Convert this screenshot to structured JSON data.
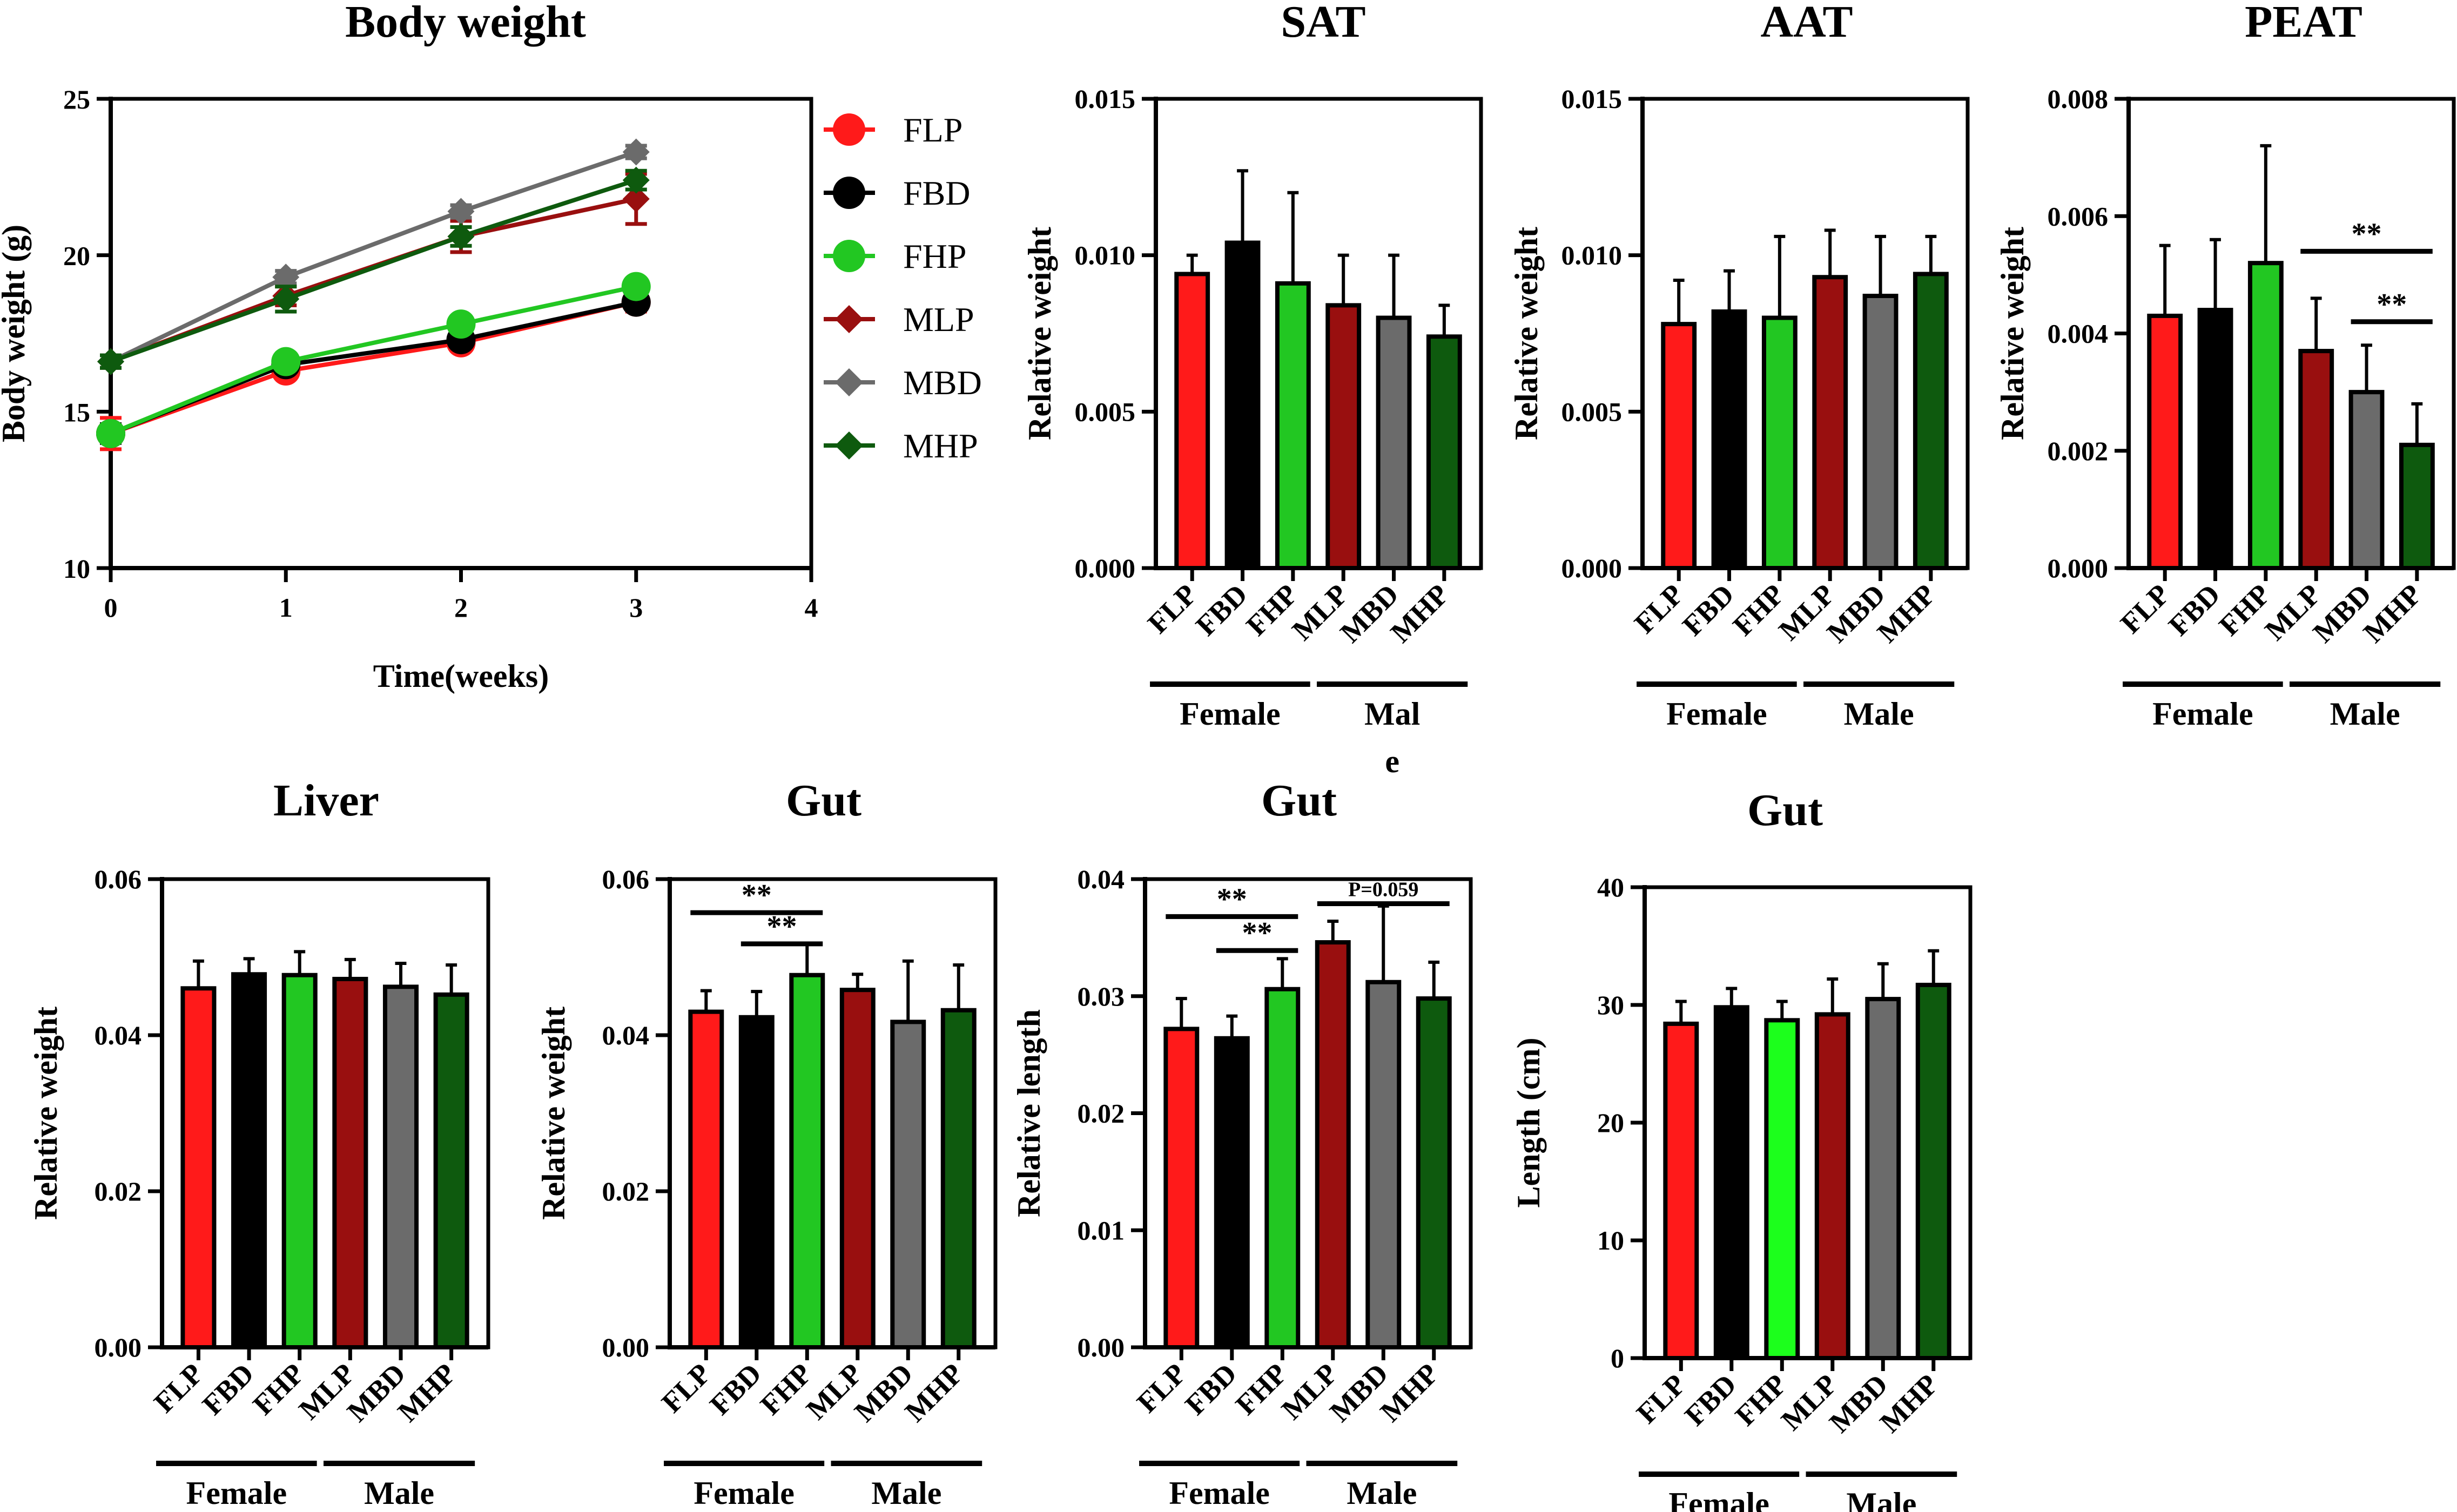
{
  "colors": {
    "FLP": "#ff1a1a",
    "FBD": "#000000",
    "FHP": "#22c722",
    "MLP": "#990f0f",
    "MBD": "#6b6b6b",
    "MHP": "#0e5a0e",
    "FHP_bright": "#1cff1c"
  },
  "chart_data": [
    {
      "id": "body-weight",
      "type": "line",
      "title": "Body weight",
      "xlabel": "Time(weeks)",
      "ylabel": "Body weight (g)",
      "xlim": [
        0,
        4
      ],
      "ylim": [
        10,
        25
      ],
      "xticks": [
        "0",
        "1",
        "2",
        "3",
        "4"
      ],
      "yticks": [
        "10",
        "15",
        "20",
        "25"
      ],
      "x": [
        0,
        1,
        2,
        3
      ],
      "series": [
        {
          "name": "FLP",
          "marker": "circle",
          "values": [
            14.3,
            16.3,
            17.2,
            18.5
          ],
          "errors": [
            0.5,
            0.2,
            0.2,
            0.3
          ]
        },
        {
          "name": "FBD",
          "marker": "circle",
          "values": [
            14.3,
            16.5,
            17.3,
            18.5
          ],
          "errors": [
            0.3,
            0.2,
            0.2,
            0.2
          ]
        },
        {
          "name": "FHP",
          "marker": "circle",
          "values": [
            14.3,
            16.6,
            17.8,
            19.0
          ],
          "errors": [
            0.2,
            0.2,
            0.2,
            0.2
          ]
        },
        {
          "name": "MLP",
          "marker": "diamond",
          "values": [
            16.6,
            18.7,
            20.6,
            21.8
          ],
          "errors": [
            0.2,
            0.3,
            0.5,
            0.8
          ]
        },
        {
          "name": "MBD",
          "marker": "diamond",
          "values": [
            16.6,
            19.3,
            21.4,
            23.3
          ],
          "errors": [
            0.2,
            0.2,
            0.2,
            0.2
          ]
        },
        {
          "name": "MHP",
          "marker": "diamond",
          "values": [
            16.6,
            18.6,
            20.6,
            22.4
          ],
          "errors": [
            0.2,
            0.4,
            0.3,
            0.3
          ]
        }
      ]
    },
    {
      "id": "sat",
      "type": "bar",
      "title": "SAT",
      "ylabel": "Relative weight",
      "ylim": [
        0,
        0.015
      ],
      "yticks": [
        "0.000",
        "0.005",
        "0.010",
        "0.015"
      ],
      "categories": [
        "FLP",
        "FBD",
        "FHP",
        "MLP",
        "MBD",
        "MHP"
      ],
      "values": [
        0.0094,
        0.0104,
        0.0091,
        0.0084,
        0.008,
        0.0074
      ],
      "errors": [
        0.0006,
        0.0023,
        0.0029,
        0.0016,
        0.002,
        0.001
      ],
      "groups": [
        {
          "label": "Female"
        },
        {
          "label": "Mal\ne"
        }
      ],
      "significance": []
    },
    {
      "id": "aat",
      "type": "bar",
      "title": "AAT",
      "ylabel": "Relative weight",
      "ylim": [
        0,
        0.015
      ],
      "yticks": [
        "0.000",
        "0.005",
        "0.010",
        "0.015"
      ],
      "categories": [
        "FLP",
        "FBD",
        "FHP",
        "MLP",
        "MBD",
        "MHP"
      ],
      "values": [
        0.0078,
        0.0082,
        0.008,
        0.0093,
        0.0087,
        0.0094
      ],
      "errors": [
        0.0014,
        0.0013,
        0.0026,
        0.0015,
        0.0019,
        0.0012
      ],
      "groups": [
        {
          "label": "Female"
        },
        {
          "label": "Male"
        }
      ],
      "significance": []
    },
    {
      "id": "peat",
      "type": "bar",
      "title": "PEAT",
      "ylabel": "Relative weight",
      "ylim": [
        0,
        0.008
      ],
      "yticks": [
        "0.000",
        "0.002",
        "0.004",
        "0.006",
        "0.008"
      ],
      "categories": [
        "FLP",
        "FBD",
        "FHP",
        "MLP",
        "MBD",
        "MHP"
      ],
      "values": [
        0.0043,
        0.0044,
        0.0052,
        0.0037,
        0.003,
        0.0021
      ],
      "errors": [
        0.0012,
        0.0012,
        0.002,
        0.0009,
        0.0008,
        0.0007
      ],
      "groups": [
        {
          "label": "Female"
        },
        {
          "label": "Male"
        }
      ],
      "significance": [
        {
          "from": 3,
          "to": 5,
          "y": 0.0054,
          "label": "**"
        },
        {
          "from": 4,
          "to": 5,
          "y": 0.0042,
          "label": "**"
        }
      ]
    },
    {
      "id": "liver",
      "type": "bar",
      "title": "Liver",
      "ylabel": "Relative weight",
      "ylim": [
        0,
        0.06
      ],
      "yticks": [
        "0.00",
        "0.02",
        "0.04",
        "0.06"
      ],
      "categories": [
        "FLP",
        "FBD",
        "FHP",
        "MLP",
        "MBD",
        "MHP"
      ],
      "values": [
        0.046,
        0.0478,
        0.0477,
        0.0472,
        0.0462,
        0.0452
      ],
      "errors": [
        0.0035,
        0.002,
        0.003,
        0.0025,
        0.003,
        0.0038
      ],
      "groups": [
        {
          "label": "Female"
        },
        {
          "label": "Male"
        }
      ],
      "significance": []
    },
    {
      "id": "gut-weight",
      "type": "bar",
      "title": "Gut",
      "ylabel": "Relative weight",
      "ylim": [
        0,
        0.06
      ],
      "yticks": [
        "0.00",
        "0.02",
        "0.04",
        "0.06"
      ],
      "categories": [
        "FLP",
        "FBD",
        "FHP",
        "MLP",
        "MBD",
        "MHP"
      ],
      "values": [
        0.043,
        0.0423,
        0.0477,
        0.0458,
        0.0417,
        0.0432
      ],
      "errors": [
        0.0027,
        0.0033,
        0.004,
        0.002,
        0.0078,
        0.0058
      ],
      "groups": [
        {
          "label": "Female"
        },
        {
          "label": "Male"
        }
      ],
      "significance": [
        {
          "from": 0,
          "to": 2,
          "y": 0.0557,
          "label": "**"
        },
        {
          "from": 1,
          "to": 2,
          "y": 0.0517,
          "label": "**"
        }
      ]
    },
    {
      "id": "gut-length-rel",
      "type": "bar",
      "title": "Gut",
      "ylabel": "Relative length",
      "ylim": [
        0,
        0.04
      ],
      "yticks": [
        "0.00",
        "0.01",
        "0.02",
        "0.03",
        "0.04"
      ],
      "categories": [
        "FLP",
        "FBD",
        "FHP",
        "MLP",
        "MBD",
        "MHP"
      ],
      "values": [
        0.0272,
        0.0264,
        0.0306,
        0.0346,
        0.0312,
        0.0298
      ],
      "errors": [
        0.0026,
        0.0019,
        0.0026,
        0.0018,
        0.0065,
        0.0031
      ],
      "groups": [
        {
          "label": "Female"
        },
        {
          "label": "Male"
        }
      ],
      "significance": [
        {
          "from": 0,
          "to": 2,
          "y": 0.0368,
          "label": "**"
        },
        {
          "from": 1,
          "to": 2,
          "y": 0.0339,
          "label": "**"
        },
        {
          "from": 3,
          "to": 5,
          "y": 0.0379,
          "label": "P=0.059",
          "small": true
        }
      ]
    },
    {
      "id": "gut-length",
      "type": "bar",
      "title": "Gut",
      "ylabel": "Length (cm)",
      "ylim": [
        0,
        40
      ],
      "yticks": [
        "0",
        "10",
        "20",
        "30",
        "40"
      ],
      "categories": [
        "FLP",
        "FBD",
        "FHP",
        "MLP",
        "MBD",
        "MHP"
      ],
      "values": [
        28.4,
        29.8,
        28.7,
        29.2,
        30.5,
        31.7
      ],
      "errors": [
        1.9,
        1.6,
        1.6,
        3.0,
        3.0,
        2.9
      ],
      "groups": [
        {
          "label": "Female"
        },
        {
          "label": "Male"
        }
      ],
      "significance": [],
      "bright_fhp": true
    }
  ]
}
